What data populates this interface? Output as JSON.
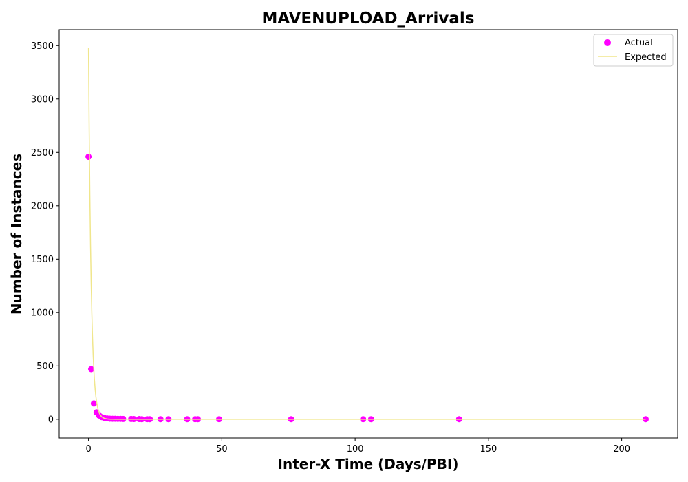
{
  "chart_data": {
    "type": "scatter",
    "title": "MAVENUPLOAD_Arrivals",
    "xlabel": "Inter-X Time (Days/PBI)",
    "ylabel": "Number of Instances",
    "xlim": [
      -11,
      221
    ],
    "ylim": [
      -175,
      3650
    ],
    "xticks": [
      0,
      50,
      100,
      150,
      200
    ],
    "yticks": [
      0,
      500,
      1000,
      1500,
      2000,
      2500,
      3000,
      3500
    ],
    "grid": false,
    "legend_position": "top-right",
    "legend": [
      "Actual",
      "Expected"
    ],
    "colors": {
      "actual": "#ff00ff",
      "expected": "#f0e68c"
    },
    "series": [
      {
        "name": "Actual",
        "kind": "scatter",
        "x": [
          0,
          1,
          2,
          3,
          4,
          5,
          6,
          7,
          8,
          9,
          10,
          11,
          12,
          13,
          16,
          17,
          19,
          20,
          22,
          23,
          27,
          30,
          37,
          40,
          41,
          49,
          76,
          103,
          106,
          139,
          209
        ],
        "y": [
          2460,
          470,
          148,
          65,
          35,
          20,
          12,
          8,
          6,
          5,
          5,
          4,
          4,
          3,
          3,
          2,
          2,
          1,
          1,
          1,
          1,
          1,
          1,
          1,
          1,
          1,
          1,
          1,
          1,
          1,
          1
        ]
      },
      {
        "name": "Expected",
        "kind": "line",
        "x": [
          0,
          0.25,
          0.5,
          0.75,
          1,
          1.25,
          1.5,
          1.75,
          2,
          2.25,
          2.5,
          2.75,
          3,
          3.5,
          4,
          4.5,
          5,
          6,
          7,
          8,
          9,
          10,
          12,
          15,
          20,
          30,
          50,
          100,
          150,
          209
        ],
        "y": [
          3480,
          2703,
          2100,
          1631,
          1267,
          984,
          765,
          594,
          461,
          358,
          278,
          216,
          168,
          101,
          61,
          37,
          22,
          8,
          3,
          1,
          0.4,
          0.2,
          0,
          0,
          0,
          0,
          0,
          0,
          0,
          0
        ]
      }
    ]
  }
}
